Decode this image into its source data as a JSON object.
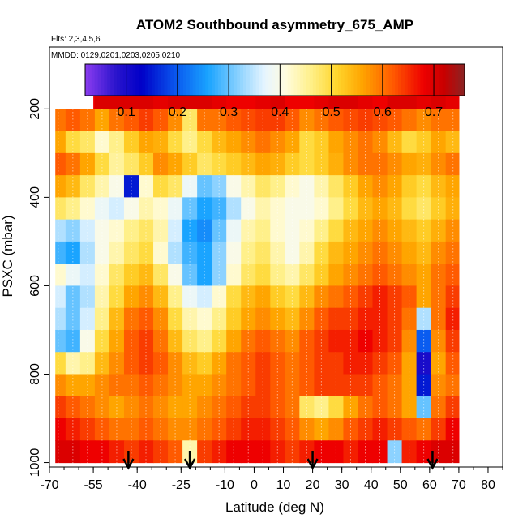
{
  "chart_data": {
    "type": "heatmap",
    "title": "ATOM2 Southbound asymmetry_675_AMP",
    "flights_label": "Flts: 2,3,4,5,6",
    "dates_label": "MMDD: 0129,0201,0203,0205,0210",
    "xlabel": "Latitude (deg N)",
    "ylabel": "PSXC (mbar)",
    "xlim": [
      -70,
      85
    ],
    "ylim": [
      1010,
      60
    ],
    "x_ticks": [
      -70,
      -55,
      -40,
      -25,
      -10,
      0,
      10,
      20,
      30,
      40,
      50,
      60,
      70,
      80
    ],
    "y_ticks": [
      200,
      400,
      600,
      800,
      1000
    ],
    "colorbar": {
      "range": [
        0.02,
        0.76
      ],
      "ticks": [
        0.1,
        0.2,
        0.3,
        0.4,
        0.5,
        0.6,
        0.7
      ],
      "stops": [
        {
          "v": 0.02,
          "c": "#8b3cf0"
        },
        {
          "v": 0.08,
          "c": "#2a14cc"
        },
        {
          "v": 0.13,
          "c": "#0000c8"
        },
        {
          "v": 0.2,
          "c": "#0a5cf0"
        },
        {
          "v": 0.26,
          "c": "#1aa4ff"
        },
        {
          "v": 0.32,
          "c": "#8cd2ff"
        },
        {
          "v": 0.37,
          "c": "#e6f5ff"
        },
        {
          "v": 0.41,
          "c": "#fffce0"
        },
        {
          "v": 0.46,
          "c": "#fff08a"
        },
        {
          "v": 0.51,
          "c": "#ffd62e"
        },
        {
          "v": 0.56,
          "c": "#ffa500"
        },
        {
          "v": 0.62,
          "c": "#ff5a00"
        },
        {
          "v": 0.68,
          "c": "#ee0000"
        },
        {
          "v": 0.72,
          "c": "#c80000"
        },
        {
          "v": 0.76,
          "c": "#8b2323"
        }
      ]
    },
    "pressure_levels": [
      175,
      225,
      275,
      325,
      375,
      425,
      475,
      525,
      575,
      625,
      675,
      725,
      775,
      825,
      875,
      925,
      975
    ],
    "lat_bins": [
      -67,
      -62,
      -57,
      -52,
      -47,
      -42,
      -37,
      -32,
      -27,
      -22,
      -17,
      -12,
      -7,
      -2,
      3,
      8,
      13,
      18,
      23,
      28,
      33,
      38,
      43,
      48,
      53,
      58,
      63,
      68
    ],
    "grid_lat_range": [
      -68,
      70
    ],
    "top_row_lat_range": [
      -55,
      70
    ],
    "values": [
      [
        null,
        null,
        0.68,
        0.7,
        0.7,
        0.7,
        0.7,
        0.69,
        0.7,
        0.7,
        0.7,
        0.69,
        0.68,
        0.68,
        0.69,
        0.7,
        0.68,
        0.68,
        0.69,
        0.7,
        0.7,
        0.69,
        0.68,
        0.7,
        0.7,
        0.69,
        0.7,
        0.69
      ],
      [
        0.6,
        0.62,
        0.6,
        0.56,
        0.6,
        0.62,
        0.64,
        0.62,
        0.58,
        0.48,
        0.6,
        0.6,
        0.62,
        0.63,
        0.64,
        0.64,
        0.62,
        0.58,
        0.6,
        0.62,
        0.63,
        0.64,
        0.63,
        0.62,
        0.6,
        0.58,
        0.6,
        0.6
      ],
      [
        0.56,
        0.5,
        0.48,
        0.42,
        0.46,
        0.52,
        0.56,
        0.55,
        0.5,
        0.46,
        0.5,
        0.54,
        0.56,
        0.58,
        0.6,
        0.58,
        0.56,
        0.5,
        0.52,
        0.56,
        0.58,
        0.6,
        0.58,
        0.54,
        0.5,
        0.52,
        0.56,
        0.54
      ],
      [
        0.62,
        0.6,
        0.56,
        0.5,
        0.45,
        0.48,
        0.52,
        0.58,
        0.56,
        0.52,
        0.48,
        0.5,
        0.52,
        0.54,
        0.56,
        0.55,
        0.52,
        0.5,
        0.52,
        0.55,
        0.58,
        0.6,
        0.6,
        0.58,
        0.56,
        0.55,
        0.58,
        0.6
      ],
      [
        0.56,
        0.54,
        0.48,
        0.44,
        0.4,
        0.15,
        0.42,
        0.5,
        0.48,
        0.38,
        0.3,
        0.32,
        0.4,
        0.44,
        0.48,
        0.46,
        0.42,
        0.4,
        0.44,
        0.48,
        0.52,
        0.56,
        0.58,
        0.56,
        0.52,
        0.5,
        0.54,
        0.56
      ],
      [
        0.48,
        0.46,
        0.42,
        0.38,
        0.36,
        0.4,
        0.44,
        0.42,
        0.38,
        0.3,
        0.26,
        0.28,
        0.34,
        0.4,
        0.44,
        0.42,
        0.4,
        0.4,
        0.42,
        0.46,
        0.5,
        0.54,
        0.56,
        0.54,
        0.5,
        0.48,
        0.52,
        0.55
      ],
      [
        0.34,
        0.32,
        0.36,
        0.4,
        0.42,
        0.46,
        0.48,
        0.44,
        0.36,
        0.26,
        0.24,
        0.3,
        0.38,
        0.44,
        0.46,
        0.42,
        0.4,
        0.42,
        0.46,
        0.5,
        0.54,
        0.56,
        0.58,
        0.56,
        0.54,
        0.52,
        0.55,
        0.58
      ],
      [
        0.28,
        0.26,
        0.34,
        0.4,
        0.44,
        0.48,
        0.5,
        0.42,
        0.34,
        0.28,
        0.26,
        0.32,
        0.4,
        0.46,
        0.48,
        0.44,
        0.4,
        0.44,
        0.5,
        0.54,
        0.56,
        0.58,
        0.6,
        0.58,
        0.56,
        0.54,
        0.58,
        0.6
      ],
      [
        0.42,
        0.38,
        0.36,
        0.42,
        0.48,
        0.52,
        0.54,
        0.48,
        0.4,
        0.3,
        0.26,
        0.32,
        0.42,
        0.48,
        0.5,
        0.46,
        0.44,
        0.48,
        0.52,
        0.56,
        0.58,
        0.6,
        0.62,
        0.6,
        0.58,
        0.56,
        0.6,
        0.62
      ],
      [
        0.36,
        0.3,
        0.34,
        0.44,
        0.5,
        0.56,
        0.58,
        0.54,
        0.46,
        0.38,
        0.36,
        0.42,
        0.5,
        0.54,
        0.56,
        0.52,
        0.5,
        0.54,
        0.58,
        0.6,
        0.62,
        0.64,
        0.66,
        0.64,
        0.62,
        0.56,
        0.6,
        0.64
      ],
      [
        0.34,
        0.3,
        0.36,
        0.46,
        0.54,
        0.6,
        0.62,
        0.58,
        0.5,
        0.44,
        0.42,
        0.46,
        0.52,
        0.56,
        0.58,
        0.56,
        0.54,
        0.58,
        0.62,
        0.64,
        0.64,
        0.66,
        0.66,
        0.64,
        0.6,
        0.34,
        0.6,
        0.66
      ],
      [
        0.3,
        0.28,
        0.4,
        0.5,
        0.56,
        0.62,
        0.64,
        0.6,
        0.54,
        0.48,
        0.46,
        0.5,
        0.56,
        0.6,
        0.62,
        0.6,
        0.58,
        0.62,
        0.64,
        0.66,
        0.66,
        0.68,
        0.66,
        0.64,
        0.58,
        0.2,
        0.58,
        0.64
      ],
      [
        0.5,
        0.44,
        0.46,
        0.54,
        0.58,
        0.62,
        0.64,
        0.62,
        0.58,
        0.54,
        0.52,
        0.56,
        0.6,
        0.62,
        0.64,
        0.62,
        0.6,
        0.62,
        0.64,
        0.64,
        0.66,
        0.66,
        0.64,
        0.62,
        0.56,
        0.1,
        0.56,
        0.62
      ],
      [
        0.58,
        0.56,
        0.56,
        0.58,
        0.6,
        0.6,
        0.62,
        0.6,
        0.58,
        0.56,
        0.56,
        0.58,
        0.6,
        0.62,
        0.64,
        0.62,
        0.6,
        0.62,
        0.64,
        0.64,
        0.64,
        0.64,
        0.62,
        0.6,
        0.56,
        0.15,
        0.58,
        0.6
      ],
      [
        0.64,
        0.62,
        0.6,
        0.58,
        0.56,
        0.58,
        0.6,
        0.58,
        0.56,
        0.56,
        0.58,
        0.6,
        0.62,
        0.64,
        0.64,
        0.62,
        0.6,
        0.48,
        0.46,
        0.5,
        0.56,
        0.6,
        0.62,
        0.6,
        0.56,
        0.3,
        0.6,
        0.64
      ],
      [
        0.68,
        0.66,
        0.64,
        0.62,
        0.6,
        0.6,
        0.62,
        0.6,
        0.58,
        0.58,
        0.6,
        0.62,
        0.64,
        0.66,
        0.66,
        0.64,
        0.62,
        0.58,
        0.56,
        0.58,
        0.62,
        0.64,
        0.66,
        0.64,
        0.62,
        0.6,
        0.64,
        0.68
      ],
      [
        0.7,
        0.7,
        0.68,
        0.68,
        0.66,
        0.64,
        0.66,
        0.64,
        0.62,
        0.44,
        0.64,
        0.66,
        0.68,
        0.68,
        0.68,
        0.66,
        0.64,
        0.66,
        0.68,
        0.68,
        0.66,
        0.68,
        0.68,
        0.32,
        0.66,
        0.68,
        0.7,
        0.7
      ]
    ],
    "arrows_lat": [
      -43,
      -22,
      20,
      61
    ]
  }
}
